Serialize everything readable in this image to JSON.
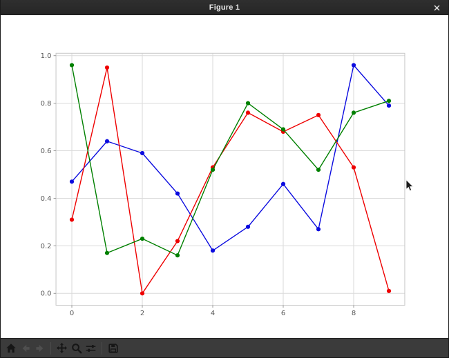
{
  "window": {
    "title": "Figure 1"
  },
  "chart_data": {
    "type": "line",
    "title": "",
    "xlabel": "",
    "ylabel": "",
    "x": [
      0,
      1,
      2,
      3,
      4,
      5,
      6,
      7,
      8,
      9
    ],
    "series": [
      {
        "name": "blue",
        "color": "#0b0bdf",
        "values": [
          0.47,
          0.64,
          0.59,
          0.42,
          0.18,
          0.28,
          0.46,
          0.27,
          0.96,
          0.79
        ]
      },
      {
        "name": "red",
        "color": "#ee0000",
        "values": [
          0.31,
          0.95,
          0.0,
          0.22,
          0.53,
          0.76,
          0.68,
          0.75,
          0.53,
          0.01
        ]
      },
      {
        "name": "green",
        "color": "#008000",
        "values": [
          0.96,
          0.17,
          0.23,
          0.16,
          0.52,
          0.8,
          0.69,
          0.52,
          0.76,
          0.81
        ]
      }
    ],
    "xticks": [
      "0",
      "2",
      "4",
      "6",
      "8"
    ],
    "ytick_labels": [
      "0.0",
      "0.2",
      "0.4",
      "0.6",
      "0.8",
      "1.0"
    ],
    "xlim": [
      -0.45,
      9.45
    ],
    "ylim": [
      -0.05,
      1.01
    ],
    "grid": true,
    "marker": "circle",
    "legend": null
  },
  "toolbar": {
    "buttons": [
      {
        "id": "home",
        "icon": "home-icon",
        "enabled": true
      },
      {
        "id": "back",
        "icon": "arrow-left-icon",
        "enabled": false
      },
      {
        "id": "forward",
        "icon": "arrow-right-icon",
        "enabled": false
      },
      {
        "id": "pan",
        "icon": "move-cross-icon",
        "enabled": true
      },
      {
        "id": "zoom",
        "icon": "magnifier-icon",
        "enabled": true
      },
      {
        "id": "subplots",
        "icon": "sliders-icon",
        "enabled": true
      },
      {
        "id": "save",
        "icon": "floppy-disk-icon",
        "enabled": true
      }
    ]
  },
  "colors": {
    "titlebar_bg": "#2a2a2a",
    "toolbar_bg": "#3b3b3b",
    "canvas_bg": "#ffffff",
    "grid_line": "#dadada",
    "axes_spine": "#c6c6c6",
    "tick_label": "#555555"
  }
}
